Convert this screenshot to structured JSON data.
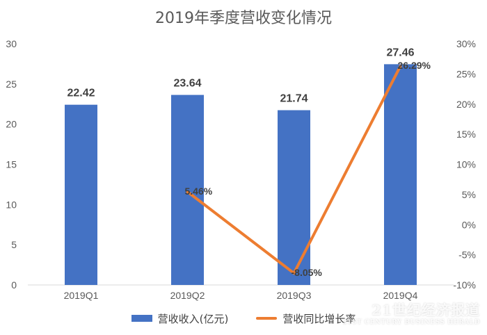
{
  "chart_data": {
    "type": "bar",
    "title": "2019年季度营收变化情况",
    "categories": [
      "2019Q1",
      "2019Q2",
      "2019Q3",
      "2019Q4"
    ],
    "series": [
      {
        "name": "营收收入(亿元)",
        "kind": "bar",
        "axis": "left",
        "color": "#4472c4",
        "values": [
          22.42,
          23.64,
          21.74,
          27.46
        ],
        "labels": [
          "22.42",
          "23.64",
          "21.74",
          "27.46"
        ]
      },
      {
        "name": "营收同比增长率",
        "kind": "line",
        "axis": "right",
        "color": "#ed7d31",
        "values": [
          null,
          5.46,
          -8.05,
          26.29
        ],
        "labels": [
          "",
          "5.46%",
          "-8.05%",
          "26.29%"
        ]
      }
    ],
    "ylim": [
      0,
      30
    ],
    "yticks": [
      "0",
      "5",
      "10",
      "15",
      "20",
      "25",
      "30"
    ],
    "y2lim": [
      -10,
      30
    ],
    "y2ticks": [
      "-10%",
      "-5%",
      "0%",
      "5%",
      "10%",
      "15%",
      "20%",
      "25%",
      "30%"
    ],
    "grid": false,
    "legend_position": "bottom"
  },
  "watermark": {
    "main": "21世纪经济报道",
    "sub": "21ST CENTURY BUSINESS HERALD"
  }
}
